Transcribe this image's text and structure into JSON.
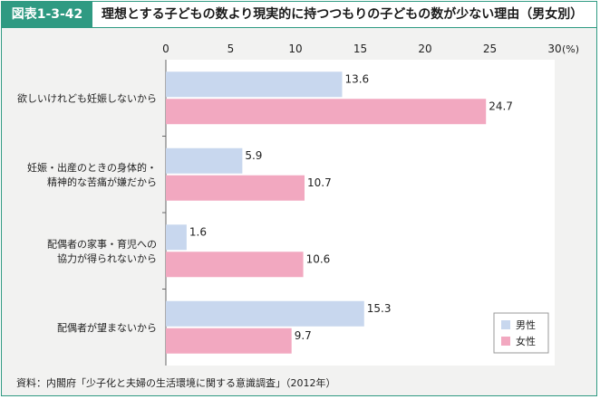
{
  "header": {
    "figure_label": "図表1-3-42",
    "title": "理想とする子どもの数より現実的に持つつもりの子どもの数が少ない理由（男女別）"
  },
  "source": "資料：内閣府「少子化と夫婦の生活環境に関する意識調査」（2012年）",
  "colors": {
    "male": "#c8d7ee",
    "female": "#f2a8c0"
  },
  "chart_data": {
    "type": "bar",
    "orientation": "horizontal",
    "unit_label": "(%)",
    "xlim": [
      0,
      30
    ],
    "ticks": [
      "0",
      "5",
      "10",
      "15",
      "20",
      "25",
      "30"
    ],
    "categories": [
      [
        "欲しいけれども妊娠しないから"
      ],
      [
        "妊娠・出産のときの身体的・",
        "精神的な苦痛が嫌だから"
      ],
      [
        "配偶者の家事・育児への",
        "協力が得られないから"
      ],
      [
        "配偶者が望まないから"
      ]
    ],
    "series": [
      {
        "name": "男性",
        "color": "#c8d7ee",
        "values": [
          13.6,
          5.9,
          1.6,
          15.3
        ],
        "labels": [
          "13.6",
          "5.9",
          "1.6",
          "15.3"
        ]
      },
      {
        "name": "女性",
        "color": "#f2a8c0",
        "values": [
          24.7,
          10.7,
          10.6,
          9.7
        ],
        "labels": [
          "24.7",
          "10.7",
          "10.6",
          "9.7"
        ]
      }
    ],
    "legend_position": "bottom-right"
  }
}
